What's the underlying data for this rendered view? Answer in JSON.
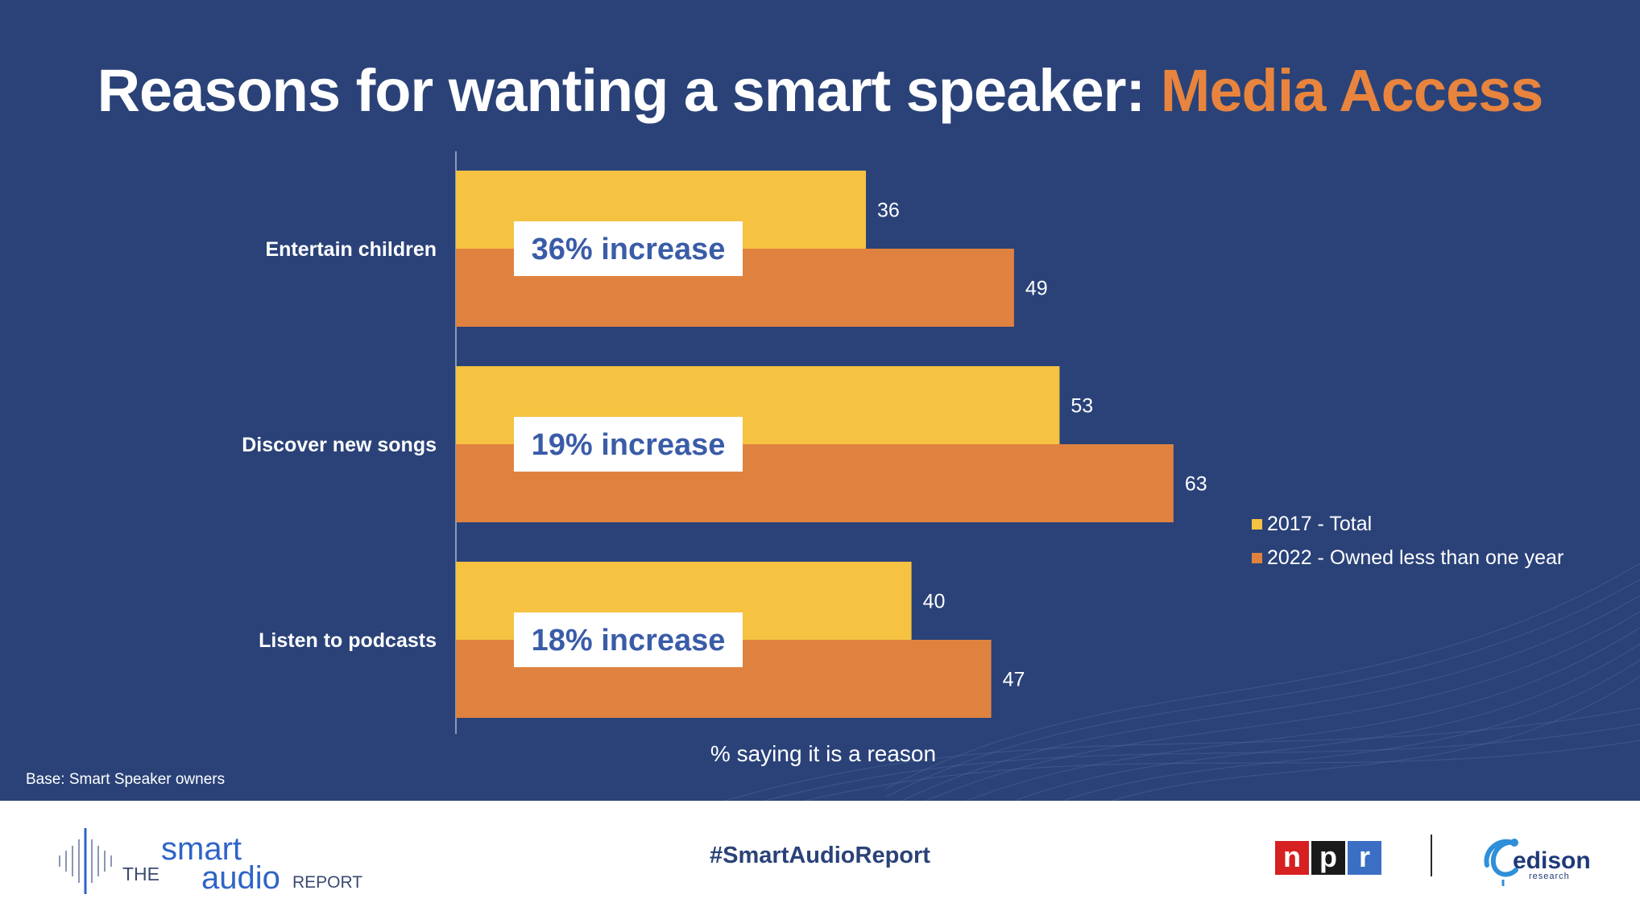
{
  "title": {
    "main": "Reasons for wanting a smart speaker:",
    "accent": "Media Access"
  },
  "chart_data": {
    "type": "bar",
    "orientation": "horizontal",
    "categories": [
      "Entertain children",
      "Discover new songs",
      "Listen to podcasts"
    ],
    "series": [
      {
        "name": "2017 - Total",
        "color": "#f5c242",
        "values": [
          36,
          53,
          40
        ]
      },
      {
        "name": "2022 - Owned less than one year",
        "color": "#e0823f",
        "values": [
          49,
          63,
          47
        ]
      }
    ],
    "annotations": [
      "36% increase",
      "19% increase",
      "18% increase"
    ],
    "xlabel": "% saying it is a reason",
    "xlim": [
      0,
      100
    ],
    "legend_position": "right"
  },
  "base_note": "Base: Smart Speaker owners",
  "footer": {
    "logo_the": "THE",
    "logo_smart": "smart",
    "logo_audio": "audio",
    "logo_report": "REPORT",
    "hashtag": "#SmartAudioReport",
    "npr_letters": [
      "n",
      "p",
      "r"
    ],
    "npr_colors": [
      "#d62021",
      "#1a1a1a",
      "#3a6fc4"
    ],
    "edison_word": "edison",
    "edison_sub": "research"
  }
}
